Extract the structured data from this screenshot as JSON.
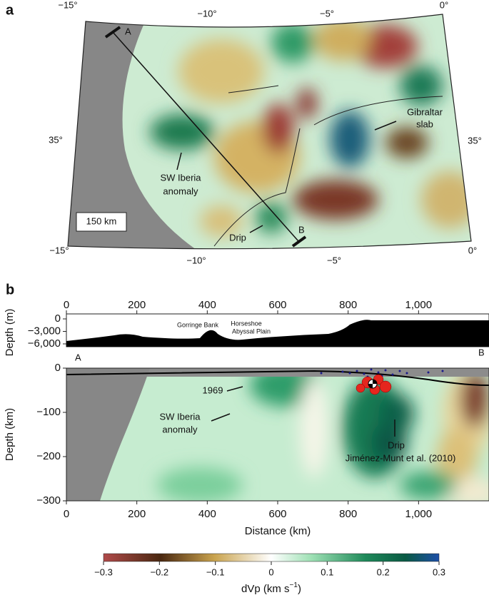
{
  "panel_a": {
    "label": "a",
    "top_lon_labels": [
      "−15°",
      "−10°",
      "−5°",
      "0°"
    ],
    "bottom_lon_labels": [
      "−15°",
      "−10°",
      "−5°",
      "0°"
    ],
    "lat_labels": [
      "35°",
      "35°"
    ],
    "profile_ends": [
      "A",
      "B"
    ],
    "gibraltar_slab": [
      "Gibraltar",
      "slab"
    ],
    "sw_iberia": [
      "SW Iberia",
      "anomaly"
    ],
    "drip": "Drip",
    "scale_bar": "150 km"
  },
  "panel_b": {
    "label": "b",
    "profile": {
      "xlim": [
        0,
        1200
      ],
      "ylim": [
        -6000,
        0
      ],
      "xticks": [
        0,
        200,
        400,
        600,
        800,
        {
          "value": 1000,
          "label": "1,000"
        }
      ],
      "yticks": [
        0,
        {
          "value": -3000,
          "label": "−3,000"
        },
        {
          "value": -6000,
          "label": "−6,000"
        }
      ],
      "ylabel": "Depth (m)",
      "annotations": [
        "Gorringe Bank",
        "Horseshoe",
        "Abyssal Plain"
      ]
    },
    "section": {
      "xlim": [
        0,
        1200
      ],
      "ylim": [
        -300,
        0
      ],
      "xticks": [
        0,
        200,
        400,
        600,
        800,
        {
          "value": 1000,
          "label": "1,000"
        }
      ],
      "yticks": [
        0,
        {
          "value": -100,
          "label": "−100"
        },
        {
          "value": -200,
          "label": "−200"
        },
        {
          "value": -300,
          "label": "−300"
        }
      ],
      "xlabel": "Distance (km)",
      "ylabel": "Depth (km)",
      "ends": [
        "A",
        "B"
      ],
      "event": "1969",
      "sw_iberia": [
        "SW Iberia",
        "anomaly"
      ],
      "drip": [
        "Drip",
        "Jiménez-Munt et al. (2010)"
      ]
    }
  },
  "colorbar": {
    "lim": [
      -0.3,
      0.3
    ],
    "ticks": [
      {
        "value": -0.3,
        "label": "−0.3"
      },
      {
        "value": -0.2,
        "label": "−0.2"
      },
      {
        "value": -0.1,
        "label": "−0.1"
      },
      0,
      0.1,
      0.2,
      0.3
    ],
    "label": "dVp (km s",
    "label_sup": "−1",
    "label_end": ")"
  }
}
